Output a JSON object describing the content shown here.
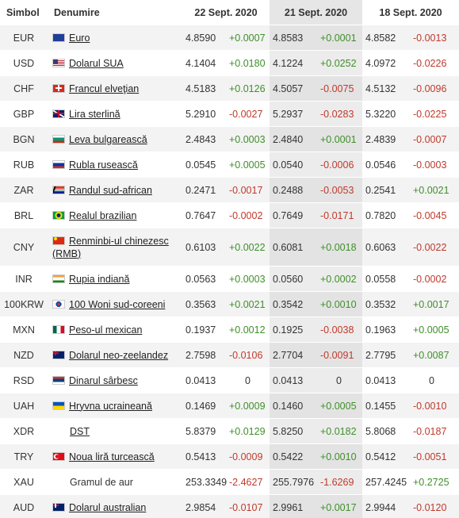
{
  "table": {
    "headers": [
      "Simbol",
      "Denumire",
      "22 Sept. 2020",
      "21 Sept. 2020",
      "18 Sept. 2020"
    ],
    "rows": [
      [
        "EUR",
        "Euro",
        "4.8590",
        "+0.0007",
        "4.8583",
        "+0.0001",
        "4.8582",
        "-0.0013"
      ],
      [
        "USD",
        "Dolarul SUA",
        "4.1404",
        "+0.0180",
        "4.1224",
        "+0.0252",
        "4.0972",
        "-0.0226"
      ],
      [
        "CHF",
        "Francul elveţian",
        "4.5183",
        "+0.0126",
        "4.5057",
        "-0.0075",
        "4.5132",
        "-0.0096"
      ],
      [
        "GBP",
        "Lira sterlină",
        "5.2910",
        "-0.0027",
        "5.2937",
        "-0.0283",
        "5.3220",
        "-0.0225"
      ],
      [
        "BGN",
        "Leva bulgarească",
        "2.4843",
        "+0.0003",
        "2.4840",
        "+0.0001",
        "2.4839",
        "-0.0007"
      ],
      [
        "RUB",
        "Rubla rusească",
        "0.0545",
        "+0.0005",
        "0.0540",
        "-0.0006",
        "0.0546",
        "-0.0003"
      ],
      [
        "ZAR",
        "Randul sud-african",
        "0.2471",
        "-0.0017",
        "0.2488",
        "-0.0053",
        "0.2541",
        "+0.0021"
      ],
      [
        "BRL",
        "Realul brazilian",
        "0.7647",
        "-0.0002",
        "0.7649",
        "-0.0171",
        "0.7820",
        "-0.0045"
      ],
      [
        "CNY",
        "Renminbi-ul chinezesc (RMB)",
        "0.6103",
        "+0.0022",
        "0.6081",
        "+0.0018",
        "0.6063",
        "-0.0022"
      ],
      [
        "INR",
        "Rupia indiană",
        "0.0563",
        "+0.0003",
        "0.0560",
        "+0.0002",
        "0.0558",
        "-0.0002"
      ],
      [
        "100KRW",
        "100 Woni sud-coreeni",
        "0.3563",
        "+0.0021",
        "0.3542",
        "+0.0010",
        "0.3532",
        "+0.0017"
      ],
      [
        "MXN",
        "Peso-ul mexican",
        "0.1937",
        "+0.0012",
        "0.1925",
        "-0.0038",
        "0.1963",
        "+0.0005"
      ],
      [
        "NZD",
        "Dolarul neo-zeelandez",
        "2.7598",
        "-0.0106",
        "2.7704",
        "-0.0091",
        "2.7795",
        "+0.0087"
      ],
      [
        "RSD",
        "Dinarul sârbesc",
        "0.0413",
        "0",
        "0.0413",
        "0",
        "0.0413",
        "0"
      ],
      [
        "UAH",
        "Hryvna ucraineană",
        "0.1469",
        "+0.0009",
        "0.1460",
        "+0.0005",
        "0.1455",
        "-0.0010"
      ],
      [
        "XDR",
        "DST",
        "5.8379",
        "+0.0129",
        "5.8250",
        "+0.0182",
        "5.8068",
        "-0.0187"
      ],
      [
        "TRY",
        "Noua liră turcească",
        "0.5413",
        "-0.0009",
        "0.5422",
        "+0.0010",
        "0.5412",
        "-0.0051"
      ],
      [
        "XAU",
        "Gramul de aur",
        "253.3349",
        "-2.4627",
        "255.7976",
        "-1.6269",
        "257.4245",
        "+0.2725"
      ],
      [
        "AUD",
        "Dolarul australian",
        "2.9854",
        "-0.0107",
        "2.9961",
        "+0.0017",
        "2.9944",
        "-0.0120"
      ]
    ]
  }
}
